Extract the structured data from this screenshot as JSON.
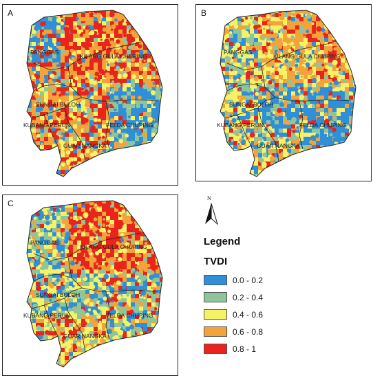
{
  "panels": [
    {
      "letter": "A",
      "labels": [
        "PANGGAS",
        "KILANG GULA CHUPING",
        "SUNGAI BULOH",
        "KUBANG PERUN",
        "FELDA CHUPING",
        "GUAR NANGKA"
      ]
    },
    {
      "letter": "B",
      "labels": [
        "PANGGAS",
        "KILANG GULA CHUPING",
        "SUNGAI BULOH",
        "KUBANG PERUN",
        "FELDA CHUPING",
        "GUAR NANGKA"
      ]
    },
    {
      "letter": "C",
      "labels": [
        "PANGGAS",
        "KILANG GULA CHUPING",
        "SUNGAI BULOH",
        "KUBANG PERUN",
        "FELDA CHUPING",
        "GUAR NANGKA"
      ]
    }
  ],
  "north_arrow": {
    "letter": "N",
    "icon": "north-arrow-icon"
  },
  "legend": {
    "title": "Legend",
    "subtitle": "TVDI",
    "classes": [
      {
        "label": "0.0 - 0.2",
        "color": "#2f8fd8"
      },
      {
        "label": "0.2 - 0.4",
        "color": "#8fc59a"
      },
      {
        "label": "0.4 - 0.6",
        "color": "#f5f268"
      },
      {
        "label": "0.6 - 0.8",
        "color": "#f4a23a"
      },
      {
        "label": "0.8 - 1",
        "color": "#e8241c"
      }
    ]
  },
  "map_colors": {
    "boundary": "#222222"
  }
}
